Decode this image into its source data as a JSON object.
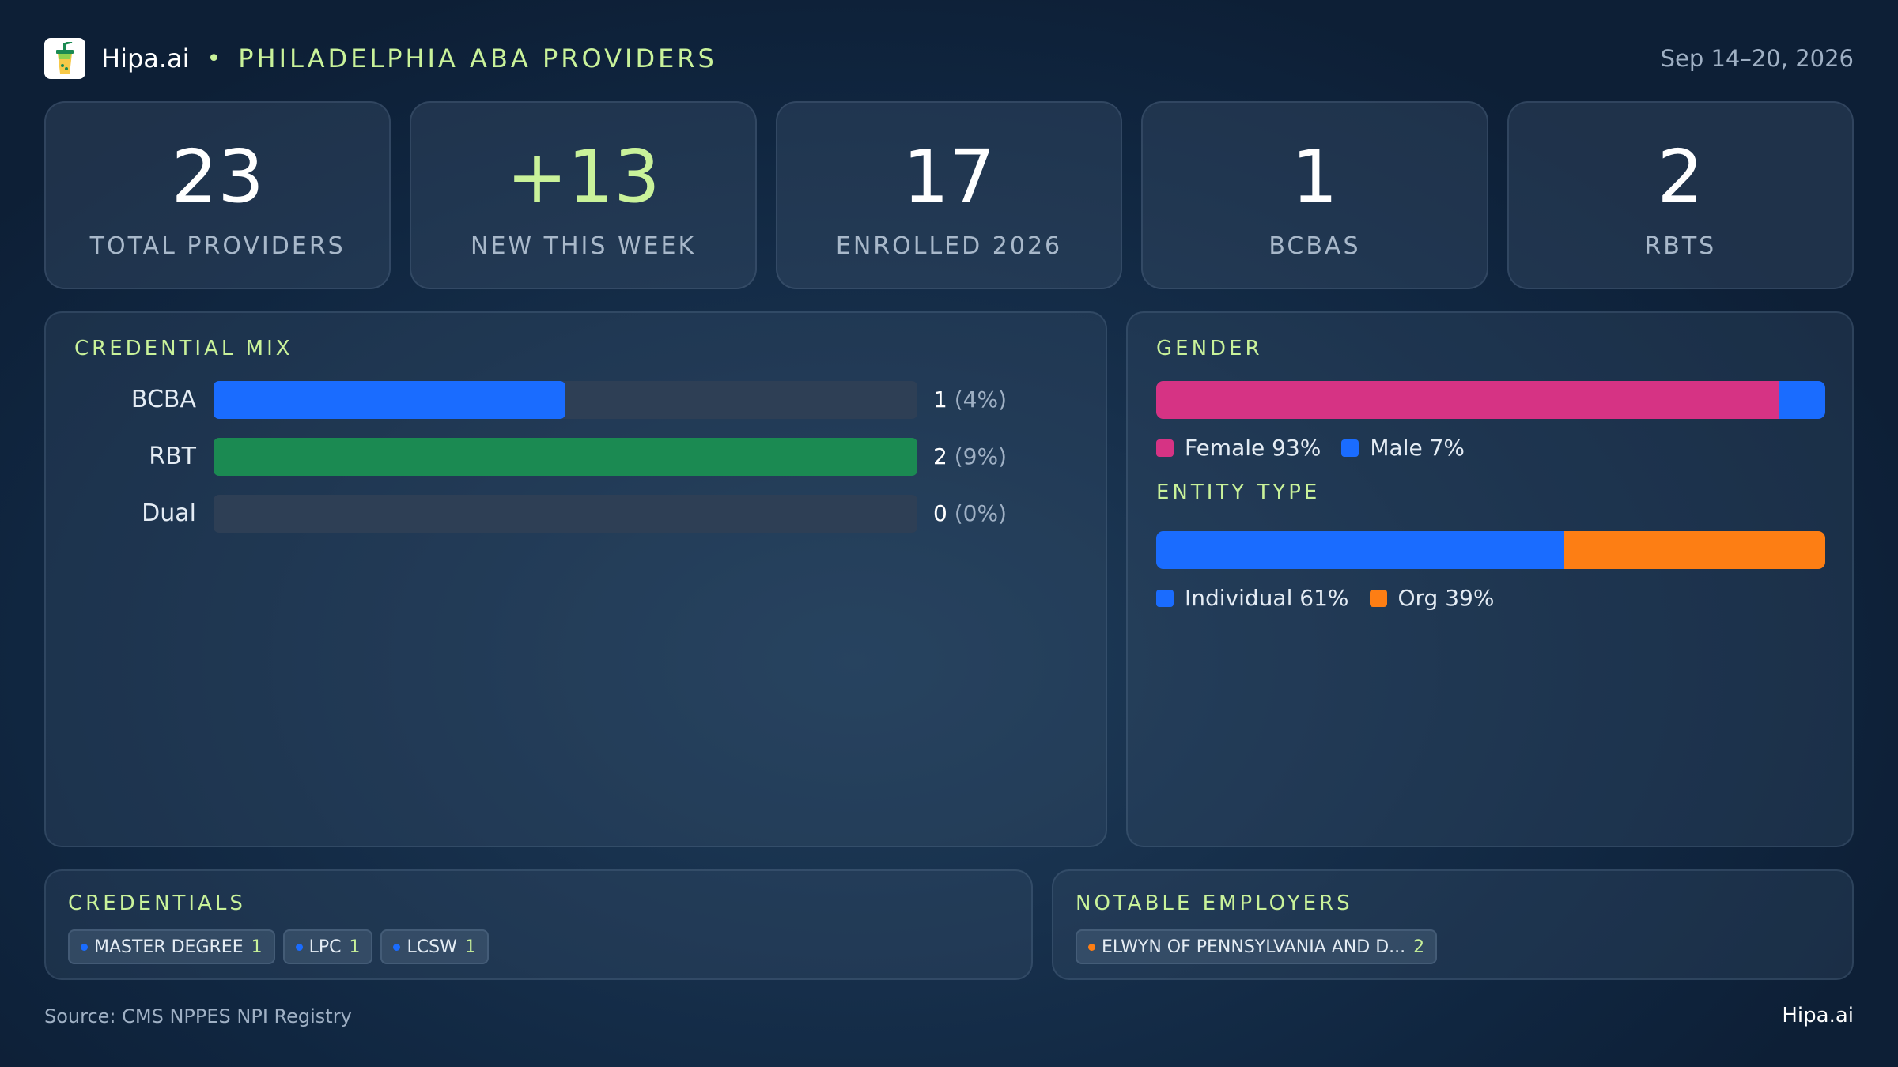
{
  "header": {
    "brand": "Hipa.ai",
    "separator": "•",
    "title": "PHILADELPHIA ABA PROVIDERS",
    "date_range": "Sep 14–20, 2026",
    "logo_icon": "drink-cup-icon"
  },
  "kpis": [
    {
      "value": "23",
      "label": "TOTAL PROVIDERS"
    },
    {
      "value": "+13",
      "label": "NEW THIS WEEK"
    },
    {
      "value": "17",
      "label": "ENROLLED 2026"
    },
    {
      "value": "1",
      "label": "BCBAS"
    },
    {
      "value": "2",
      "label": "RBTS"
    }
  ],
  "credential_mix": {
    "title": "CREDENTIAL MIX",
    "rows": [
      {
        "label": "BCBA",
        "count": "1",
        "pct": "(4%)",
        "fill_fraction": 0.5,
        "color": "#1a6cff"
      },
      {
        "label": "RBT",
        "count": "2",
        "pct": "(9%)",
        "fill_fraction": 1.0,
        "color": "#1b8a52"
      },
      {
        "label": "Dual",
        "count": "0",
        "pct": "(0%)",
        "fill_fraction": 0.0,
        "color": "#1a6cff"
      }
    ]
  },
  "gender": {
    "title": "GENDER",
    "segments": [
      {
        "label": "Female 93%",
        "value": 93,
        "color": "#d63384"
      },
      {
        "label": "Male 7%",
        "value": 7,
        "color": "#1a6cff"
      }
    ]
  },
  "entity_type": {
    "title": "ENTITY TYPE",
    "segments": [
      {
        "label": "Individual 61%",
        "value": 61,
        "color": "#1a6cff"
      },
      {
        "label": "Org 39%",
        "value": 39,
        "color": "#fd7e14"
      }
    ]
  },
  "credentials": {
    "title": "CREDENTIALS",
    "chips": [
      {
        "label": "MASTER DEGREE",
        "count": "1",
        "dot_color": "#1a6cff"
      },
      {
        "label": "LPC",
        "count": "1",
        "dot_color": "#1a6cff"
      },
      {
        "label": "LCSW",
        "count": "1",
        "dot_color": "#1a6cff"
      }
    ]
  },
  "employers": {
    "title": "NOTABLE EMPLOYERS",
    "chips": [
      {
        "label": "ELWYN OF PENNSYLVANIA  AND D...",
        "count": "2",
        "dot_color": "#fd7e14"
      }
    ]
  },
  "footer": {
    "source": "Source: CMS NPPES NPI Registry",
    "brand": "Hipa.ai"
  },
  "colors": {
    "accent": "#c9f29a",
    "background": "#102640"
  }
}
